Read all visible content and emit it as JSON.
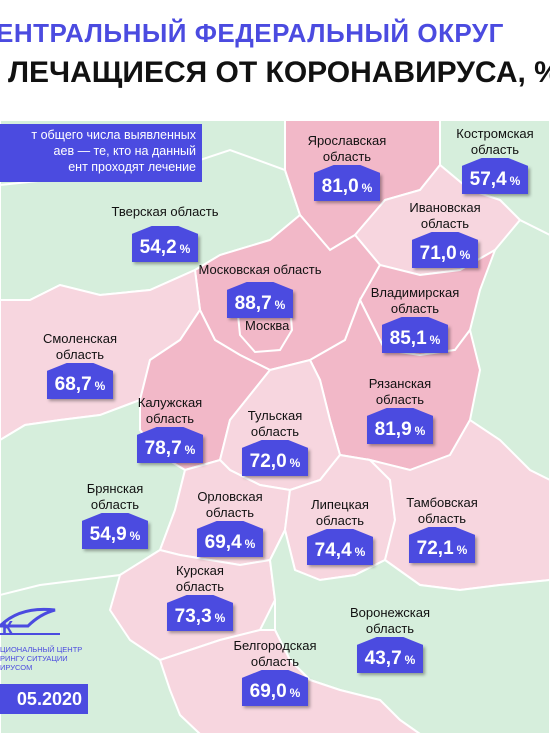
{
  "header": {
    "title_line1": "ЕНТРАЛЬНЫЙ ФЕДЕРАЛЬНЫЙ ОКРУГ",
    "title_line2": "ЛЕЧАЩИЕСЯ ОТ КОРОНАВИРУСА, %"
  },
  "note": {
    "line1": "т общего числа выявленных",
    "line2": "аев — те, кто на данный",
    "line3": "ент проходят лечение"
  },
  "unit": "%",
  "regions": [
    {
      "name1": "Ярославская",
      "name2": "область",
      "value": "81,0"
    },
    {
      "name1": "Костромская",
      "name2": "область",
      "value": "57,4"
    },
    {
      "name1": "Тверская область",
      "name2": "",
      "value": "54,2"
    },
    {
      "name1": "Ивановская",
      "name2": "область",
      "value": "71,0"
    },
    {
      "name1": "Московская область",
      "name2": "",
      "value": "88,7"
    },
    {
      "name1": "Владимирская",
      "name2": "область",
      "value": "85,1"
    },
    {
      "name1": "Смоленская",
      "name2": "область",
      "value": "68,7"
    },
    {
      "name1": "Рязанская",
      "name2": "область",
      "value": "81,9"
    },
    {
      "name1": "Калужская",
      "name2": "область",
      "value": "78,7"
    },
    {
      "name1": "Тульская",
      "name2": "область",
      "value": "72,0"
    },
    {
      "name1": "Брянская",
      "name2": "область",
      "value": "54,9"
    },
    {
      "name1": "Орловская",
      "name2": "область",
      "value": "69,4"
    },
    {
      "name1": "Липецкая",
      "name2": "область",
      "value": "74,4"
    },
    {
      "name1": "Тамбовская",
      "name2": "область",
      "value": "72,1"
    },
    {
      "name1": "Курская",
      "name2": "область",
      "value": "73,3"
    },
    {
      "name1": "Воронежская",
      "name2": "область",
      "value": "43,7"
    },
    {
      "name1": "Белгородская",
      "name2": "область",
      "value": "69,0"
    }
  ],
  "moscow_city": "Москва",
  "logo": {
    "letters": "К",
    "line1": "ЦИОНАЛЬНЫЙ ЦЕНТР",
    "line2": "РИНГУ СИТУАЦИИ",
    "line3": "ИРУСОМ"
  },
  "date": "05.2020",
  "colors": {
    "accent": "#4b4be0",
    "pink_dark": "#f2b8c8",
    "pink_light": "#f7d6df",
    "green": "#d6eedc",
    "border": "#ffffff"
  }
}
